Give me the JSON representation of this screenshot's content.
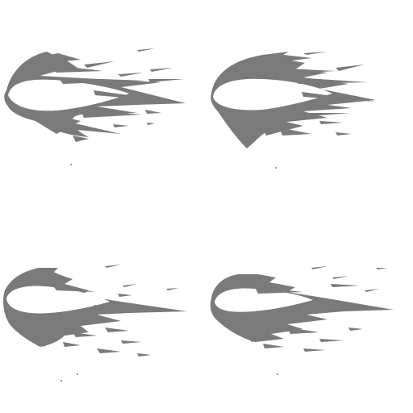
{
  "sprite_sheet": {
    "background": "#ffffff",
    "effect_color": "#7a7a7a",
    "grid": {
      "columns": 2,
      "rows": 2
    },
    "frames": [
      {
        "index": 1,
        "icon": "crescent-slash-effect"
      },
      {
        "index": 2,
        "icon": "crescent-slash-effect"
      },
      {
        "index": 3,
        "icon": "crescent-slash-effect"
      },
      {
        "index": 4,
        "icon": "crescent-slash-effect"
      }
    ]
  }
}
